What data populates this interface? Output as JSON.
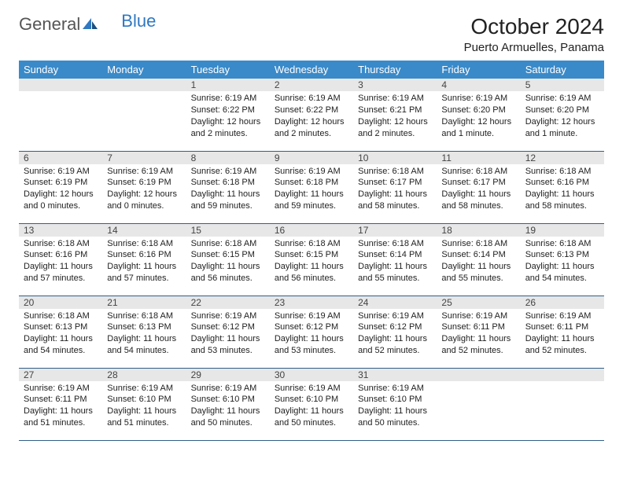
{
  "logo": {
    "text1": "General",
    "text2": "Blue"
  },
  "title": "October 2024",
  "location": "Puerto Armuelles, Panama",
  "colors": {
    "header_bg": "#3a8ac9",
    "header_text": "#ffffff",
    "daynum_bg": "#e7e7e7",
    "border": "#2f5f8a",
    "logo_blue": "#2f78c2"
  },
  "weekdays": [
    "Sunday",
    "Monday",
    "Tuesday",
    "Wednesday",
    "Thursday",
    "Friday",
    "Saturday"
  ],
  "weeks": [
    [
      null,
      null,
      {
        "day": "1",
        "sunrise": "Sunrise: 6:19 AM",
        "sunset": "Sunset: 6:22 PM",
        "daylight": "Daylight: 12 hours and 2 minutes."
      },
      {
        "day": "2",
        "sunrise": "Sunrise: 6:19 AM",
        "sunset": "Sunset: 6:22 PM",
        "daylight": "Daylight: 12 hours and 2 minutes."
      },
      {
        "day": "3",
        "sunrise": "Sunrise: 6:19 AM",
        "sunset": "Sunset: 6:21 PM",
        "daylight": "Daylight: 12 hours and 2 minutes."
      },
      {
        "day": "4",
        "sunrise": "Sunrise: 6:19 AM",
        "sunset": "Sunset: 6:20 PM",
        "daylight": "Daylight: 12 hours and 1 minute."
      },
      {
        "day": "5",
        "sunrise": "Sunrise: 6:19 AM",
        "sunset": "Sunset: 6:20 PM",
        "daylight": "Daylight: 12 hours and 1 minute."
      }
    ],
    [
      {
        "day": "6",
        "sunrise": "Sunrise: 6:19 AM",
        "sunset": "Sunset: 6:19 PM",
        "daylight": "Daylight: 12 hours and 0 minutes."
      },
      {
        "day": "7",
        "sunrise": "Sunrise: 6:19 AM",
        "sunset": "Sunset: 6:19 PM",
        "daylight": "Daylight: 12 hours and 0 minutes."
      },
      {
        "day": "8",
        "sunrise": "Sunrise: 6:19 AM",
        "sunset": "Sunset: 6:18 PM",
        "daylight": "Daylight: 11 hours and 59 minutes."
      },
      {
        "day": "9",
        "sunrise": "Sunrise: 6:19 AM",
        "sunset": "Sunset: 6:18 PM",
        "daylight": "Daylight: 11 hours and 59 minutes."
      },
      {
        "day": "10",
        "sunrise": "Sunrise: 6:18 AM",
        "sunset": "Sunset: 6:17 PM",
        "daylight": "Daylight: 11 hours and 58 minutes."
      },
      {
        "day": "11",
        "sunrise": "Sunrise: 6:18 AM",
        "sunset": "Sunset: 6:17 PM",
        "daylight": "Daylight: 11 hours and 58 minutes."
      },
      {
        "day": "12",
        "sunrise": "Sunrise: 6:18 AM",
        "sunset": "Sunset: 6:16 PM",
        "daylight": "Daylight: 11 hours and 58 minutes."
      }
    ],
    [
      {
        "day": "13",
        "sunrise": "Sunrise: 6:18 AM",
        "sunset": "Sunset: 6:16 PM",
        "daylight": "Daylight: 11 hours and 57 minutes."
      },
      {
        "day": "14",
        "sunrise": "Sunrise: 6:18 AM",
        "sunset": "Sunset: 6:16 PM",
        "daylight": "Daylight: 11 hours and 57 minutes."
      },
      {
        "day": "15",
        "sunrise": "Sunrise: 6:18 AM",
        "sunset": "Sunset: 6:15 PM",
        "daylight": "Daylight: 11 hours and 56 minutes."
      },
      {
        "day": "16",
        "sunrise": "Sunrise: 6:18 AM",
        "sunset": "Sunset: 6:15 PM",
        "daylight": "Daylight: 11 hours and 56 minutes."
      },
      {
        "day": "17",
        "sunrise": "Sunrise: 6:18 AM",
        "sunset": "Sunset: 6:14 PM",
        "daylight": "Daylight: 11 hours and 55 minutes."
      },
      {
        "day": "18",
        "sunrise": "Sunrise: 6:18 AM",
        "sunset": "Sunset: 6:14 PM",
        "daylight": "Daylight: 11 hours and 55 minutes."
      },
      {
        "day": "19",
        "sunrise": "Sunrise: 6:18 AM",
        "sunset": "Sunset: 6:13 PM",
        "daylight": "Daylight: 11 hours and 54 minutes."
      }
    ],
    [
      {
        "day": "20",
        "sunrise": "Sunrise: 6:18 AM",
        "sunset": "Sunset: 6:13 PM",
        "daylight": "Daylight: 11 hours and 54 minutes."
      },
      {
        "day": "21",
        "sunrise": "Sunrise: 6:18 AM",
        "sunset": "Sunset: 6:13 PM",
        "daylight": "Daylight: 11 hours and 54 minutes."
      },
      {
        "day": "22",
        "sunrise": "Sunrise: 6:19 AM",
        "sunset": "Sunset: 6:12 PM",
        "daylight": "Daylight: 11 hours and 53 minutes."
      },
      {
        "day": "23",
        "sunrise": "Sunrise: 6:19 AM",
        "sunset": "Sunset: 6:12 PM",
        "daylight": "Daylight: 11 hours and 53 minutes."
      },
      {
        "day": "24",
        "sunrise": "Sunrise: 6:19 AM",
        "sunset": "Sunset: 6:12 PM",
        "daylight": "Daylight: 11 hours and 52 minutes."
      },
      {
        "day": "25",
        "sunrise": "Sunrise: 6:19 AM",
        "sunset": "Sunset: 6:11 PM",
        "daylight": "Daylight: 11 hours and 52 minutes."
      },
      {
        "day": "26",
        "sunrise": "Sunrise: 6:19 AM",
        "sunset": "Sunset: 6:11 PM",
        "daylight": "Daylight: 11 hours and 52 minutes."
      }
    ],
    [
      {
        "day": "27",
        "sunrise": "Sunrise: 6:19 AM",
        "sunset": "Sunset: 6:11 PM",
        "daylight": "Daylight: 11 hours and 51 minutes."
      },
      {
        "day": "28",
        "sunrise": "Sunrise: 6:19 AM",
        "sunset": "Sunset: 6:10 PM",
        "daylight": "Daylight: 11 hours and 51 minutes."
      },
      {
        "day": "29",
        "sunrise": "Sunrise: 6:19 AM",
        "sunset": "Sunset: 6:10 PM",
        "daylight": "Daylight: 11 hours and 50 minutes."
      },
      {
        "day": "30",
        "sunrise": "Sunrise: 6:19 AM",
        "sunset": "Sunset: 6:10 PM",
        "daylight": "Daylight: 11 hours and 50 minutes."
      },
      {
        "day": "31",
        "sunrise": "Sunrise: 6:19 AM",
        "sunset": "Sunset: 6:10 PM",
        "daylight": "Daylight: 11 hours and 50 minutes."
      },
      null,
      null
    ]
  ]
}
